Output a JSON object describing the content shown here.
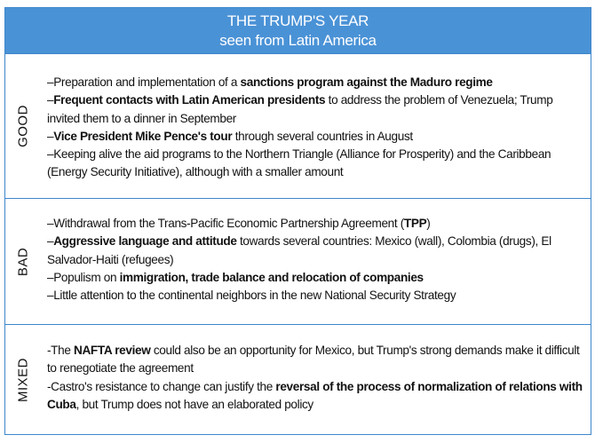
{
  "header": {
    "title": "THE TRUMP'S YEAR",
    "subtitle": "seen from Latin America"
  },
  "colors": {
    "header_bg": "#4a92d6",
    "border": "#3f86cc"
  },
  "sections": [
    {
      "label": "GOOD",
      "items": [
        [
          {
            "t": "–Preparation and implementation of a "
          },
          {
            "t": "sanctions program against the Maduro regime",
            "b": true
          }
        ],
        [
          {
            "t": "–"
          },
          {
            "t": "Frequent contacts with Latin American presidents",
            "b": true
          },
          {
            "t": " to address the problem of Venezuela; Trump invited them to a dinner in September"
          }
        ],
        [
          {
            "t": "–"
          },
          {
            "t": "Vice President Mike Pence's tour",
            "b": true
          },
          {
            "t": " through several countries in August"
          }
        ],
        [
          {
            "t": "–Keeping alive the aid programs to the Northern Triangle (Alliance for Prosperity) and the Caribbean (Energy Security Initiative), although with a smaller amount"
          }
        ]
      ]
    },
    {
      "label": "BAD",
      "items": [
        [
          {
            "t": "–Withdrawal from the Trans-Pacific Economic Partnership Agreement ("
          },
          {
            "t": "TPP",
            "b": true
          },
          {
            "t": ")"
          }
        ],
        [
          {
            "t": "–"
          },
          {
            "t": "Aggressive language and attitude",
            "b": true
          },
          {
            "t": " towards several countries: Mexico (wall), Colombia (drugs), El Salvador-Haiti (refugees)"
          }
        ],
        [
          {
            "t": "–Populism on "
          },
          {
            "t": "immigration, trade balance and relocation of companies",
            "b": true
          }
        ],
        [
          {
            "t": "–Little attention to the continental neighbors in the new National Security Strategy"
          }
        ]
      ]
    },
    {
      "label": "MIXED",
      "items": [
        [
          {
            "t": "-The "
          },
          {
            "t": "NAFTA review",
            "b": true
          },
          {
            "t": " could also be an opportunity for Mexico, but Trump's strong demands make it difficult to renegotiate the agreement"
          }
        ],
        [
          {
            "t": "-Castro's resistance to change can justify the "
          },
          {
            "t": "reversal of the process of normalization of relations with Cuba",
            "b": true
          },
          {
            "t": ", but Trump does not have an elaborated policy"
          }
        ]
      ]
    }
  ]
}
